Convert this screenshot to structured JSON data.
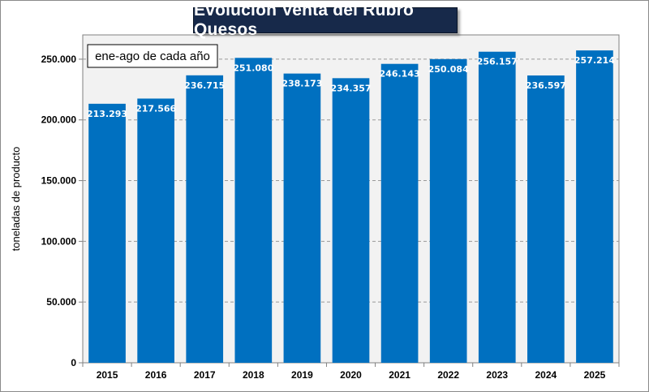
{
  "chart_data": {
    "type": "bar",
    "title": "Evolución Venta del Rubro Quesos",
    "annotation": "ene-ago de cada año",
    "ylabel": "toneladas de producto",
    "xlabel": "",
    "categories": [
      "2015",
      "2016",
      "2017",
      "2018",
      "2019",
      "2020",
      "2021",
      "2022",
      "2023",
      "2024",
      "2025"
    ],
    "values": [
      213293,
      217566,
      236715,
      251080,
      238173,
      234357,
      246143,
      250084,
      256157,
      236597,
      257214
    ],
    "value_labels": [
      "213.293",
      "217.566",
      "236.715",
      "251.080",
      "238.173",
      "234.357",
      "246.143",
      "250.084",
      "256.157",
      "236.597",
      "257.214"
    ],
    "ylim": [
      0,
      270000
    ],
    "yticks": [
      0,
      50000,
      100000,
      150000,
      200000,
      250000
    ],
    "ytick_labels": [
      "0",
      "50.000",
      "100.000",
      "150.000",
      "200.000",
      "250.000"
    ],
    "grid": "horizontal dashed",
    "colors": {
      "bar": "#0070c0",
      "title_bg": "#17294a",
      "plot_bg": "#f2f2f2"
    }
  }
}
